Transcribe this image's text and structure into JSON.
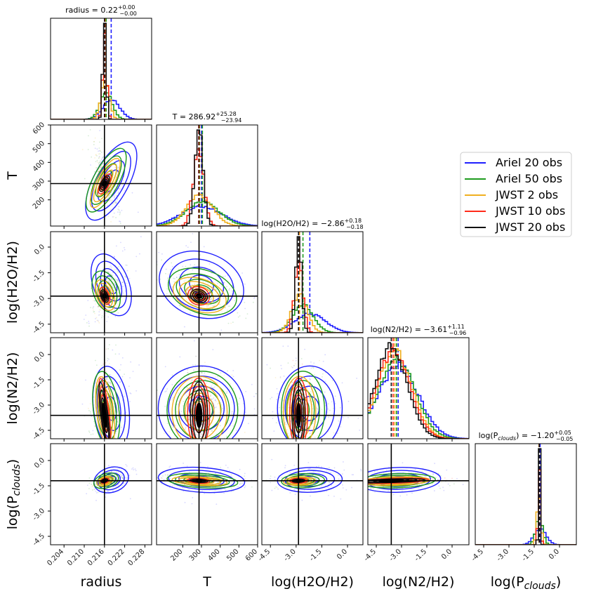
{
  "chart_data": {
    "type": "corner",
    "parameters": [
      "radius",
      "T",
      "log(H2O/H2)",
      "log(N2/H2)",
      "log(Pclouds)"
    ],
    "axis_labels": [
      "radius",
      "T",
      "log(H2O/H2)",
      "log(N2/H2)",
      "log(P_clouds)"
    ],
    "true_values": [
      0.216,
      286.92,
      -2.86,
      -3.61,
      -1.2
    ],
    "ranges": [
      [
        0.2,
        0.23
      ],
      [
        60,
        600
      ],
      [
        -5.0,
        0.9
      ],
      [
        -5.0,
        1.0
      ],
      [
        -5.0,
        1.0
      ]
    ],
    "ticks": [
      [
        0.204,
        0.21,
        0.216,
        0.222,
        0.228
      ],
      [
        200,
        300,
        400,
        500,
        600
      ],
      [
        -4.5,
        -3.0,
        -1.5,
        0.0
      ],
      [
        -4.5,
        -3.0,
        -1.5,
        0.0
      ],
      [
        -4.5,
        -3.0,
        -1.5,
        0.0
      ]
    ],
    "tick_labels": [
      [
        "0.204",
        "0.210",
        "0.216",
        "0.222",
        "0.228"
      ],
      [
        "200",
        "300",
        "400",
        "500",
        "600"
      ],
      [
        "-4.5",
        "-3.0",
        "-1.5",
        "0.0"
      ],
      [
        "-4.5",
        "-3.0",
        "-1.5",
        "0.0"
      ],
      [
        "-4.5",
        "-3.0",
        "-1.5",
        "0.0"
      ]
    ],
    "diag_titles": [
      {
        "name": "radius",
        "median": "0.22",
        "plus": "+0.00",
        "minus": "−0.00"
      },
      {
        "name": "T",
        "median": "286.92",
        "plus": "+25.28",
        "minus": "−23.94"
      },
      {
        "name": "log(H2O/H2)",
        "median": "−2.86",
        "plus": "+0.18",
        "minus": "−0.18"
      },
      {
        "name": "log(N2/H2)",
        "median": "−3.61",
        "plus": "+1.11",
        "minus": "−0.96"
      },
      {
        "name": "log(Pclouds)",
        "median": "−1.20",
        "plus": "+0.05",
        "minus": "−0.05"
      }
    ],
    "series": [
      {
        "name": "Ariel 20 obs",
        "color": "#1f1fff",
        "median": [
          0.218,
          300,
          -2.2,
          -3.2,
          -1.15
        ],
        "sigma": [
          0.0025,
          110,
          0.9,
          1.2,
          0.35
        ]
      },
      {
        "name": "Ariel 50 obs",
        "color": "#1e9b1e",
        "median": [
          0.2165,
          305,
          -2.6,
          -3.3,
          -1.2
        ],
        "sigma": [
          0.0018,
          90,
          0.6,
          1.1,
          0.2
        ]
      },
      {
        "name": "JWST 2 obs",
        "color": "#f0b020",
        "median": [
          0.2162,
          290,
          -2.8,
          -3.4,
          -1.22
        ],
        "sigma": [
          0.0012,
          70,
          0.45,
          1.0,
          0.12
        ]
      },
      {
        "name": "JWST 10 obs",
        "color": "#ff2a1a",
        "median": [
          0.2161,
          285,
          -2.85,
          -3.5,
          -1.2
        ],
        "sigma": [
          0.0006,
          28,
          0.25,
          1.0,
          0.07
        ]
      },
      {
        "name": "JWST 20 obs",
        "color": "#111111",
        "median": [
          0.216,
          287,
          -2.86,
          -3.61,
          -1.2
        ],
        "sigma": [
          0.0005,
          22,
          0.18,
          0.95,
          0.05
        ]
      }
    ]
  },
  "legend": {
    "placement": "right"
  }
}
